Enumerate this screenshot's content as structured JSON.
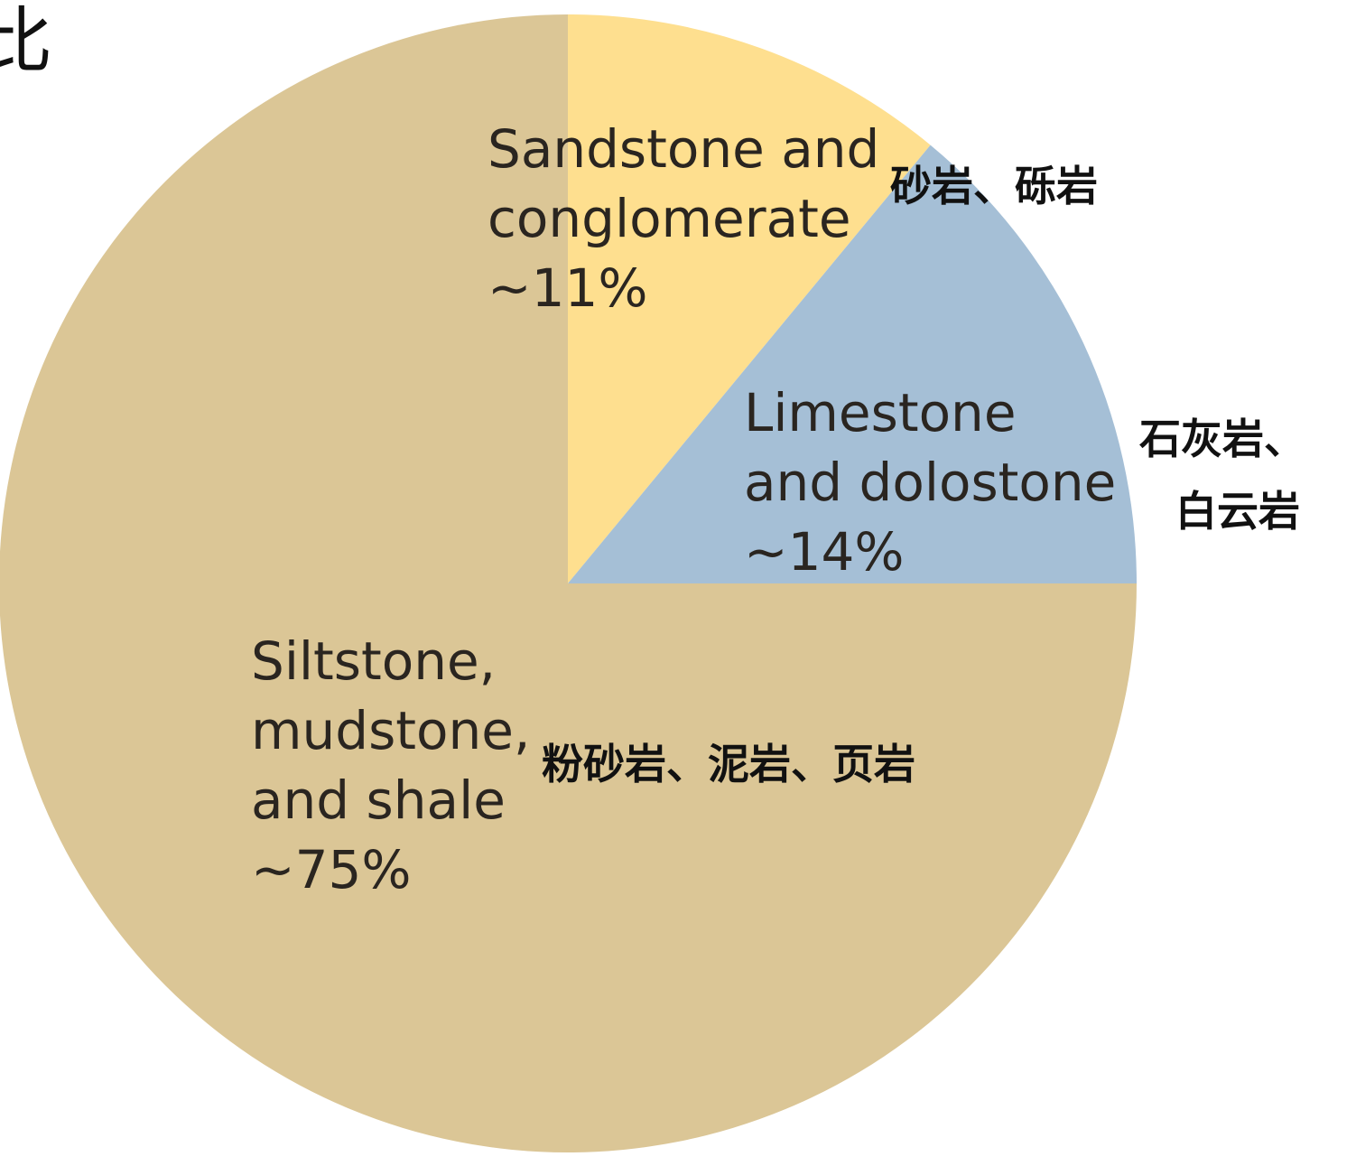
{
  "corner_glyph": "比",
  "chart_data": {
    "type": "pie",
    "start_angle_deg": 0,
    "direction": "clockwise",
    "slices": [
      {
        "key": "sandstone",
        "label_lines": [
          "Sandstone and",
          "conglomerate",
          "~11%"
        ],
        "value": 11,
        "color": "#fedf8f",
        "annotation": [
          "砂岩、砾岩"
        ]
      },
      {
        "key": "limestone",
        "label_lines": [
          "Limestone",
          "and dolostone",
          "~14%"
        ],
        "value": 14,
        "color": "#a5bfd6",
        "annotation": [
          "石灰岩、",
          "白云岩"
        ]
      },
      {
        "key": "siltstone",
        "label_lines": [
          "Siltstone,",
          "mudstone,",
          "and shale",
          "~75%"
        ],
        "value": 75,
        "color": "#dbc696",
        "annotation": [
          "粉砂岩、泥岩、页岩"
        ]
      }
    ]
  }
}
